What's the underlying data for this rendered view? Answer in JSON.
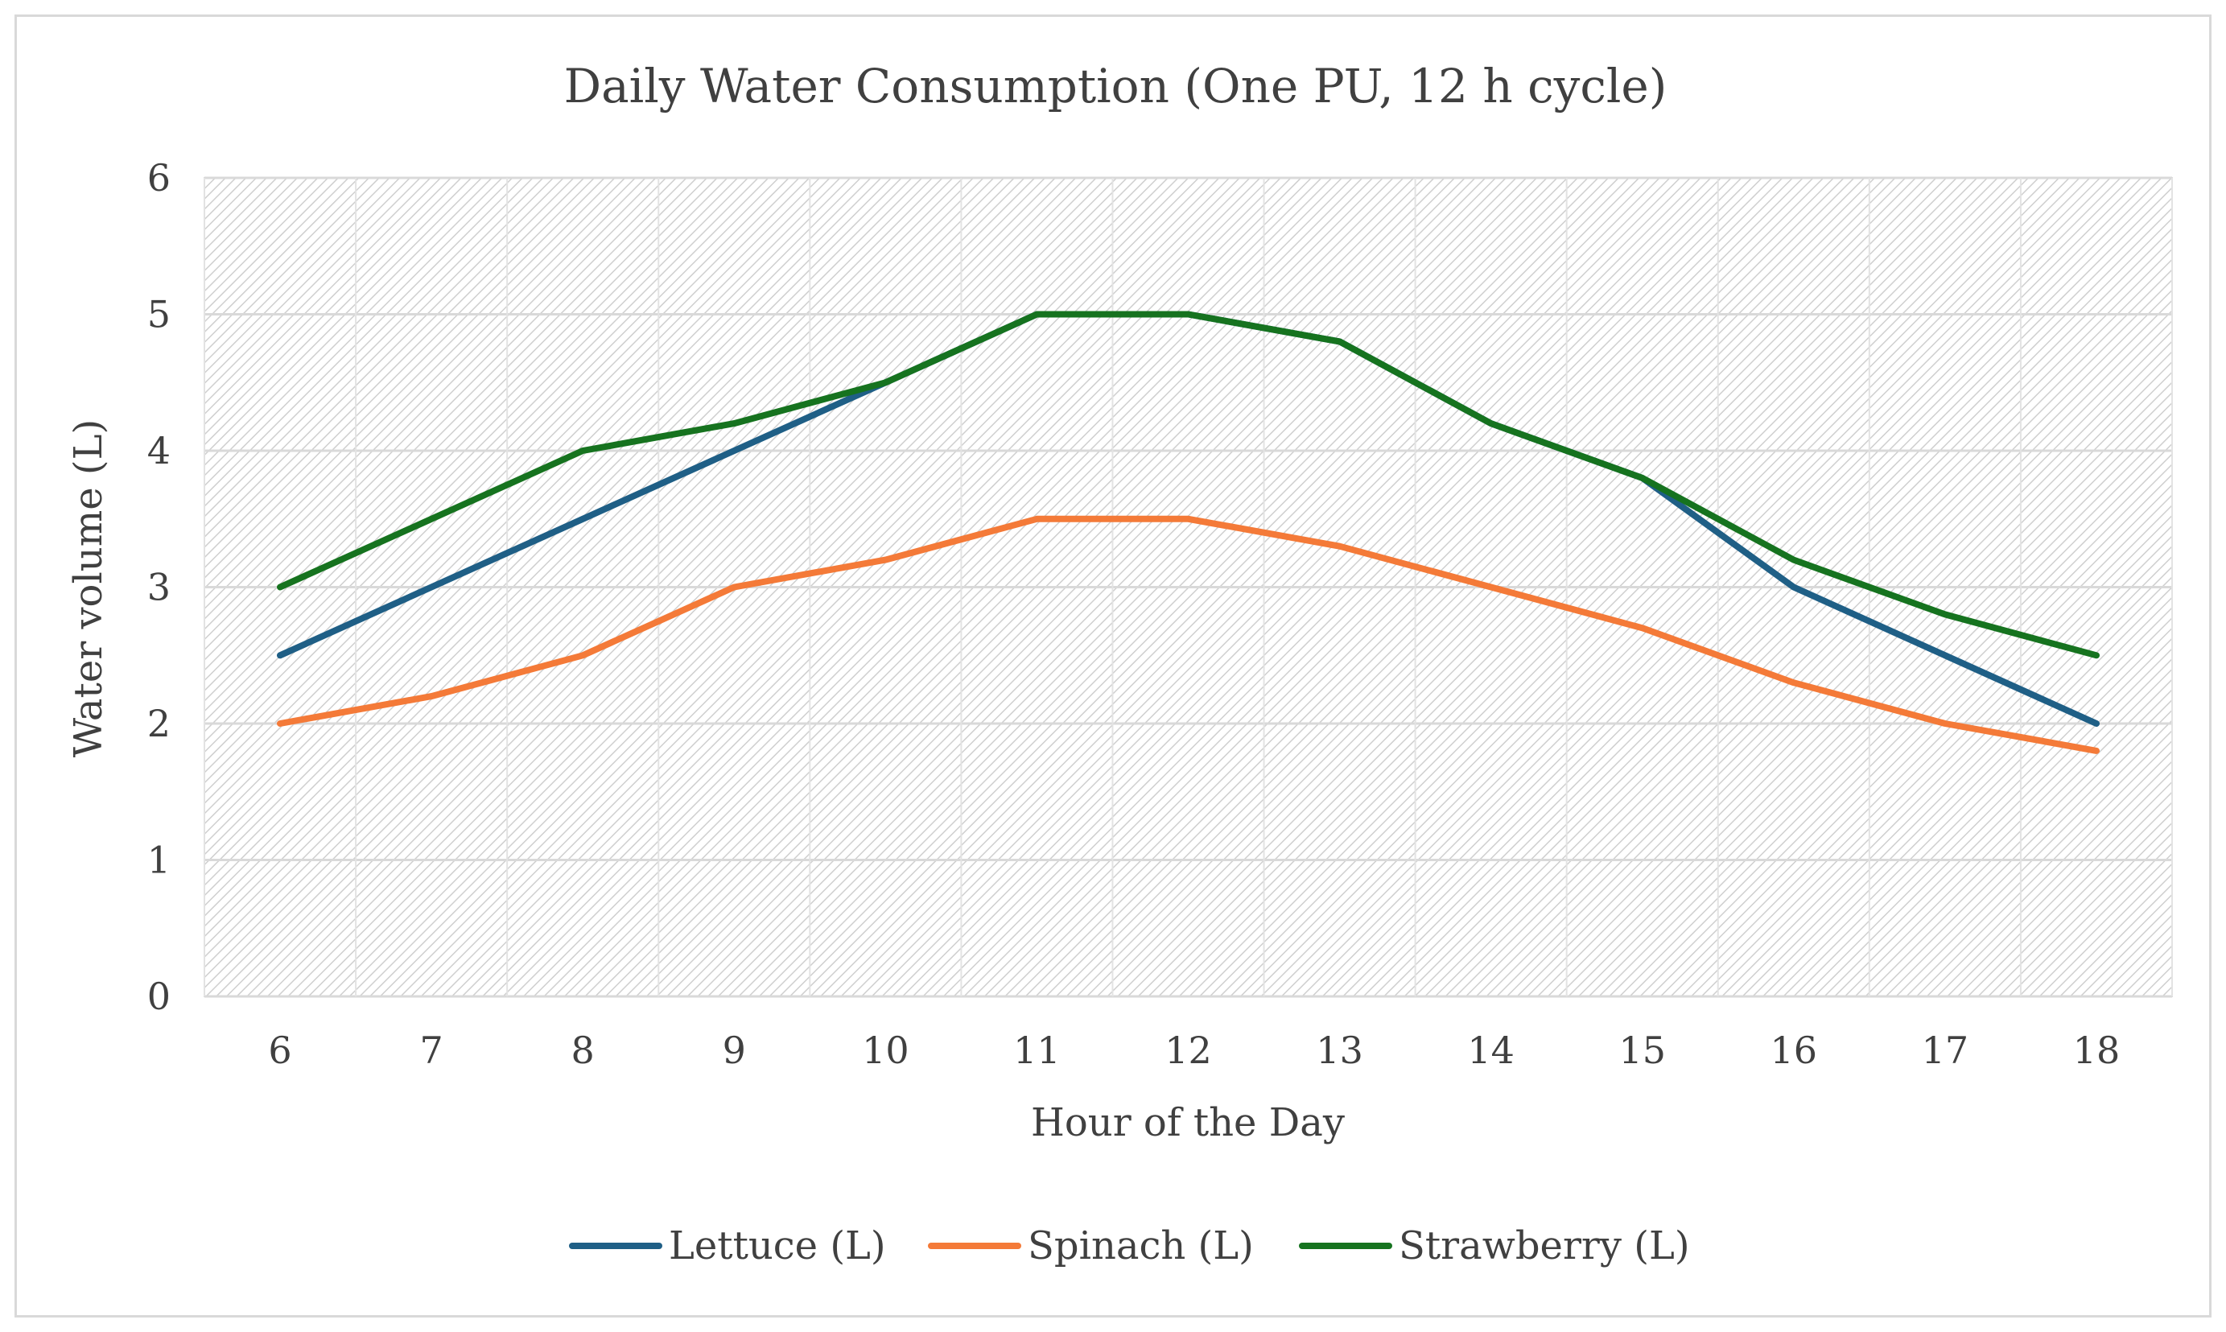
{
  "chart_data": {
    "type": "line",
    "title": "Daily Water Consumption (One PU, 12 h cycle)",
    "xlabel": "Hour of the Day",
    "ylabel": "Water volume (L)",
    "categories": [
      6,
      7,
      8,
      9,
      10,
      11,
      12,
      13,
      14,
      15,
      16,
      17,
      18
    ],
    "ylim": [
      0,
      6
    ],
    "yticks": [
      0,
      1,
      2,
      3,
      4,
      5,
      6
    ],
    "grid": true,
    "legend_position": "bottom",
    "series": [
      {
        "name": "Lettuce (L)",
        "color": "#1f5f86",
        "values": [
          2.5,
          3.0,
          3.5,
          4.0,
          4.5,
          5.0,
          5.0,
          4.8,
          4.2,
          3.8,
          3.0,
          2.5,
          2.0
        ]
      },
      {
        "name": "Spinach (L)",
        "color": "#f47a38",
        "values": [
          2.0,
          2.2,
          2.5,
          3.0,
          3.2,
          3.5,
          3.5,
          3.3,
          3.0,
          2.7,
          2.3,
          2.0,
          1.8
        ]
      },
      {
        "name": "Strawberry (L)",
        "color": "#16731f",
        "values": [
          3.0,
          3.5,
          4.0,
          4.2,
          4.5,
          5.0,
          5.0,
          4.8,
          4.2,
          3.8,
          3.2,
          2.8,
          2.5
        ]
      }
    ]
  }
}
